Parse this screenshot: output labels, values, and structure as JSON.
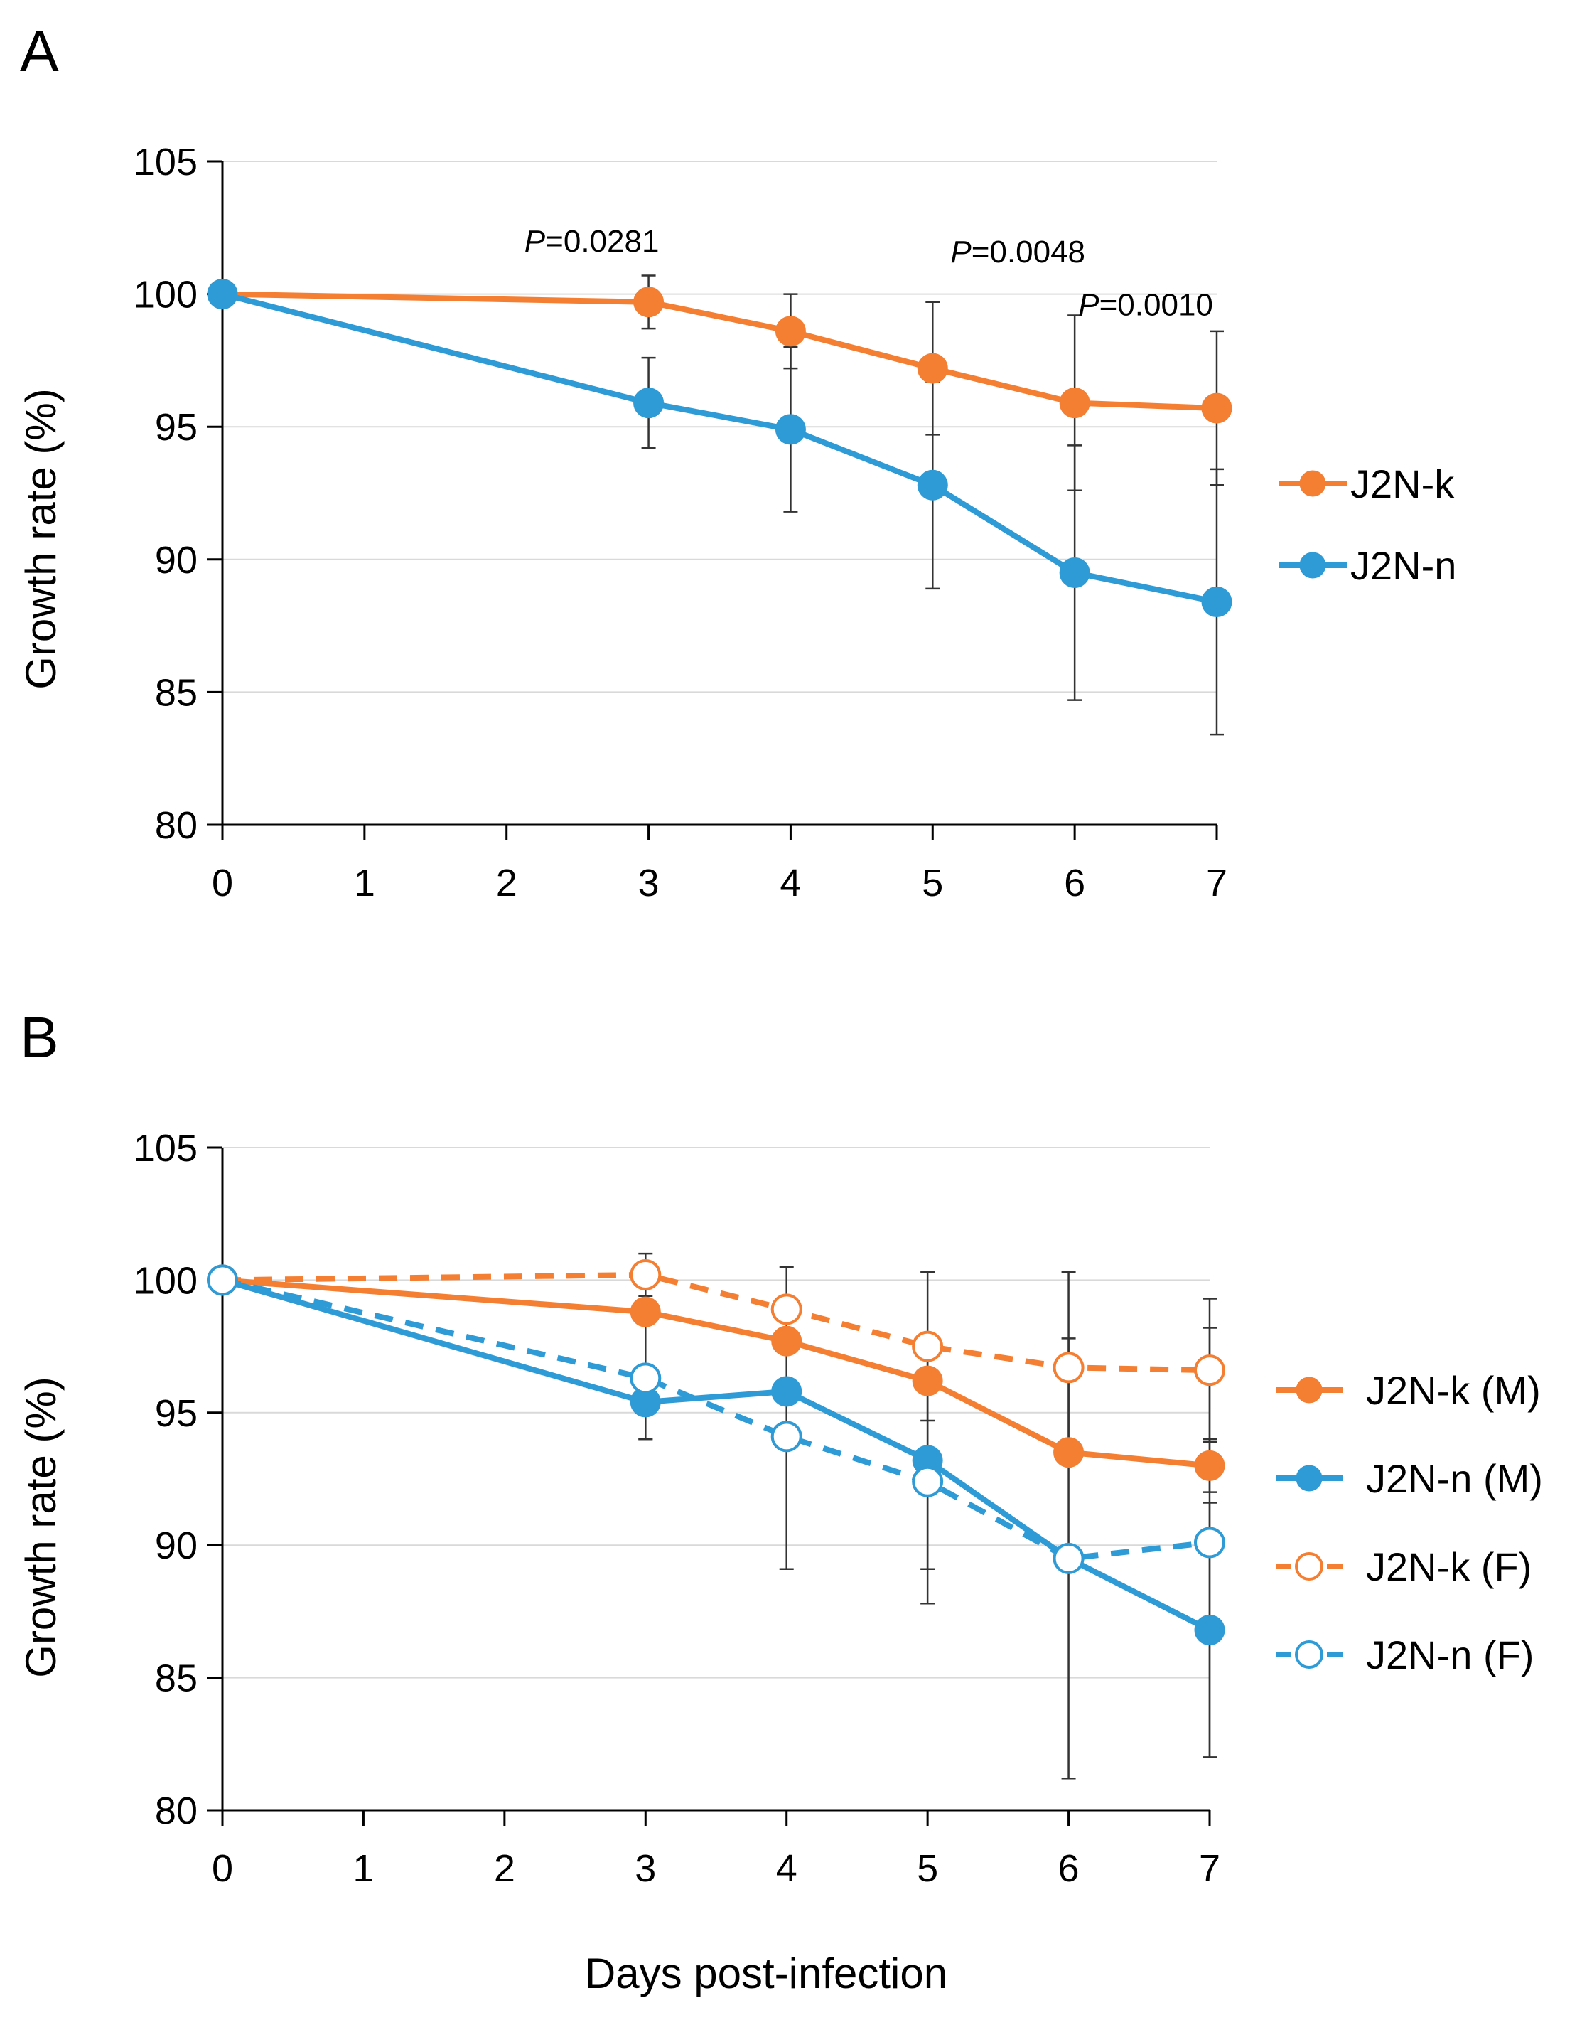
{
  "figure": {
    "x_axis_title": "Days post-infection"
  },
  "chart_data": [
    {
      "panel": "A",
      "type": "line",
      "ylabel": "Growth rate (%)",
      "xlabel": "",
      "xlim": [
        0,
        7
      ],
      "ylim": [
        80,
        105
      ],
      "xticks": [
        "0",
        "1",
        "2",
        "3",
        "4",
        "5",
        "6",
        "7"
      ],
      "yticks": [
        "80",
        "85",
        "90",
        "95",
        "100",
        "105"
      ],
      "grid": true,
      "legend_position": "right",
      "series": [
        {
          "name": "J2N-k",
          "color": "#f47f32",
          "dashed": false,
          "filled": true,
          "x": [
            0,
            3,
            4,
            5,
            6,
            7
          ],
          "values": [
            100,
            99.7,
            98.6,
            97.2,
            95.9,
            95.7
          ],
          "err": [
            0,
            1.0,
            1.4,
            2.5,
            3.3,
            2.9
          ]
        },
        {
          "name": "J2N-n",
          "color": "#2e9ad6",
          "dashed": false,
          "filled": true,
          "x": [
            0,
            3,
            4,
            5,
            6,
            7
          ],
          "values": [
            100,
            95.9,
            94.9,
            92.8,
            89.5,
            88.4
          ],
          "err": [
            0,
            1.7,
            3.1,
            3.9,
            4.8,
            5.0
          ]
        }
      ],
      "annotations": [
        {
          "italic": "P",
          "text": "=0.0281",
          "x": 2.6,
          "y": 101.6
        },
        {
          "italic": "P",
          "text": "=0.0048",
          "x": 5.6,
          "y": 101.2
        },
        {
          "italic": "P",
          "text": "=0.0010",
          "x": 6.5,
          "y": 99.2
        }
      ]
    },
    {
      "panel": "B",
      "type": "line",
      "ylabel": "Growth rate (%)",
      "xlabel": "Days post-infection",
      "xlim": [
        0,
        7
      ],
      "ylim": [
        80,
        105
      ],
      "xticks": [
        "0",
        "1",
        "2",
        "3",
        "4",
        "5",
        "6",
        "7"
      ],
      "yticks": [
        "80",
        "85",
        "90",
        "95",
        "100",
        "105"
      ],
      "grid": true,
      "legend_position": "right",
      "series": [
        {
          "name": "J2N-k (M)",
          "color": "#f47f32",
          "dashed": false,
          "filled": true,
          "x": [
            0,
            3,
            4,
            5,
            6,
            7
          ],
          "values": [
            100,
            98.8,
            97.7,
            96.2,
            93.5,
            93.0
          ],
          "err": [
            0,
            0,
            0,
            0,
            0,
            1.0
          ]
        },
        {
          "name": "J2N-n (M)",
          "color": "#2e9ad6",
          "dashed": false,
          "filled": true,
          "x": [
            0,
            3,
            4,
            5,
            6,
            7
          ],
          "values": [
            100,
            95.4,
            95.8,
            93.2,
            89.5,
            86.8
          ],
          "err": [
            0,
            1.4,
            0,
            4.1,
            0,
            4.8
          ]
        },
        {
          "name": "J2N-k (F)",
          "color": "#f47f32",
          "dashed": true,
          "filled": false,
          "x": [
            0,
            3,
            4,
            5,
            6,
            7
          ],
          "values": [
            100,
            100.2,
            98.9,
            97.5,
            96.7,
            96.6
          ],
          "err": [
            0,
            0.8,
            1.6,
            2.8,
            3.6,
            2.7
          ]
        },
        {
          "name": "J2N-n (F)",
          "color": "#2e9ad6",
          "dashed": true,
          "filled": false,
          "x": [
            0,
            3,
            4,
            5,
            6,
            7
          ],
          "values": [
            100,
            96.3,
            94.1,
            92.4,
            89.5,
            90.1
          ],
          "err": [
            0,
            2.3,
            5.0,
            4.6,
            8.3,
            8.1
          ]
        }
      ]
    }
  ]
}
